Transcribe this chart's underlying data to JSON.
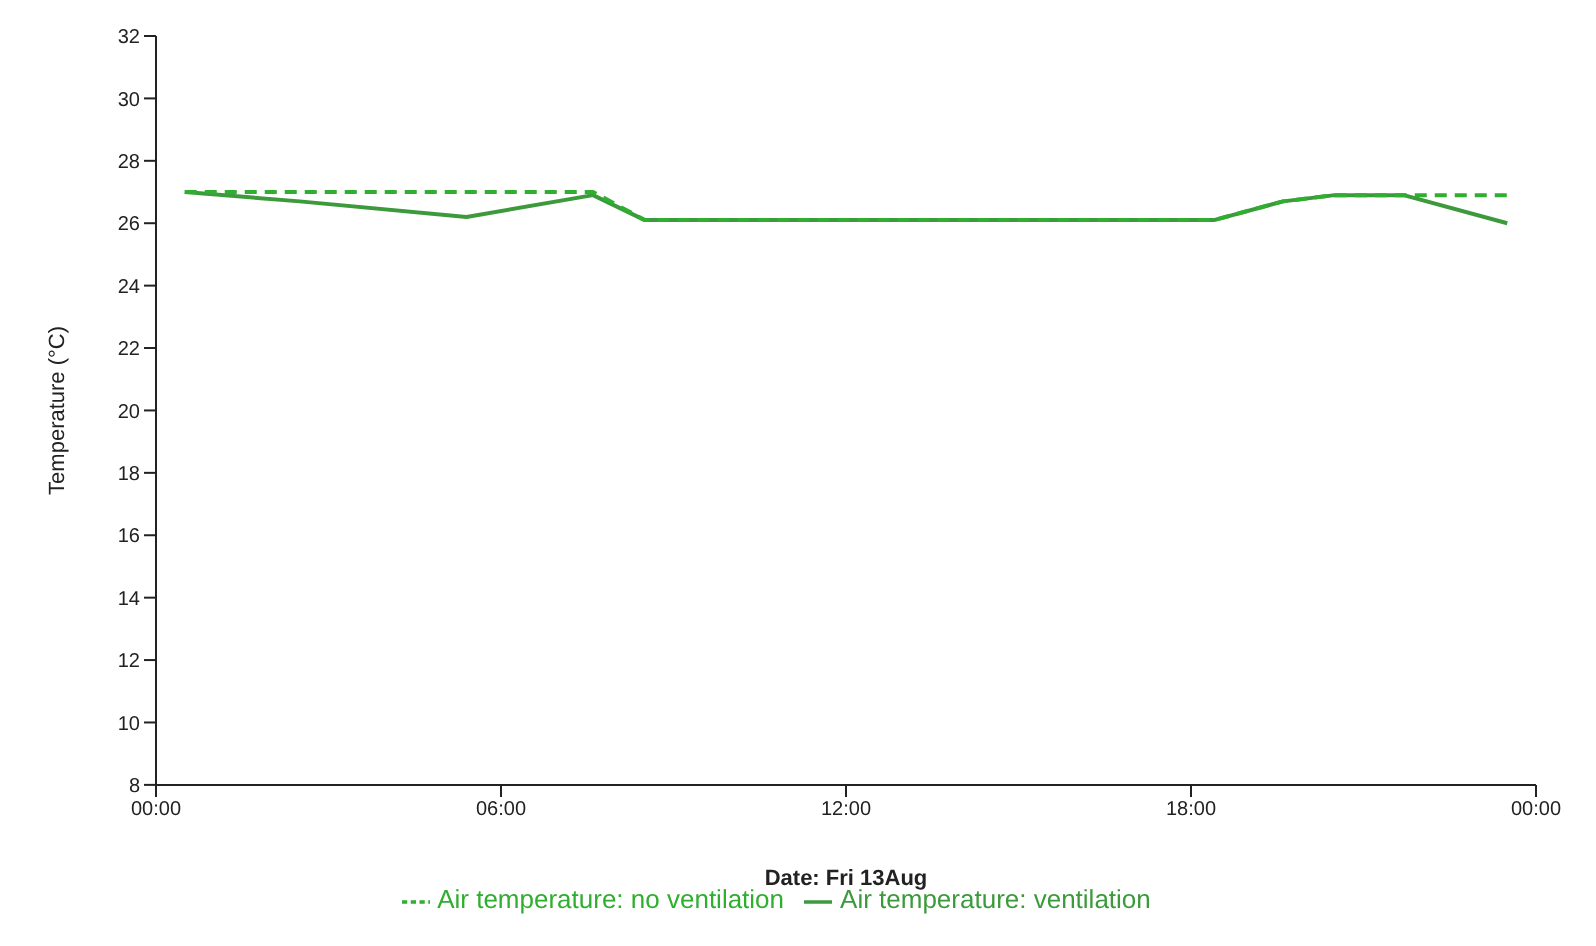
{
  "chart_data": {
    "type": "line",
    "xlabel": "Date: Fri 13Aug",
    "ylabel": "Temperature (°C)",
    "xlim": [
      0,
      24
    ],
    "xticks": [
      {
        "value": 0,
        "label": "00:00"
      },
      {
        "value": 6,
        "label": "06:00"
      },
      {
        "value": 12,
        "label": "12:00"
      },
      {
        "value": 18,
        "label": "18:00"
      },
      {
        "value": 24,
        "label": "00:00"
      }
    ],
    "ylim": [
      8,
      32
    ],
    "yticks": [
      8,
      10,
      12,
      14,
      16,
      18,
      20,
      22,
      24,
      26,
      28,
      30,
      32
    ],
    "grid": false,
    "legend": "bottom",
    "marker": "none",
    "series": [
      {
        "name": "Air temperature: ventilation",
        "color": "#3c9a3c",
        "line_style": "solid",
        "x": [
          0.5,
          2.5,
          5.4,
          7.6,
          8.5,
          12,
          18.4,
          19.6,
          20.5,
          21.7,
          23.5
        ],
        "values": [
          27.0,
          26.7,
          26.2,
          26.9,
          26.1,
          26.1,
          26.1,
          26.7,
          26.9,
          26.9,
          26.0
        ]
      },
      {
        "name": "Air temperature: no ventilation",
        "color": "#2fae2f",
        "line_style": "dashed",
        "x": [
          0.5,
          4,
          7.6,
          8.5,
          12,
          18.4,
          19.6,
          20.5,
          21.7,
          23.5
        ],
        "values": [
          27.0,
          27.0,
          27.0,
          26.1,
          26.1,
          26.1,
          26.7,
          26.9,
          26.9,
          26.9
        ]
      }
    ]
  }
}
